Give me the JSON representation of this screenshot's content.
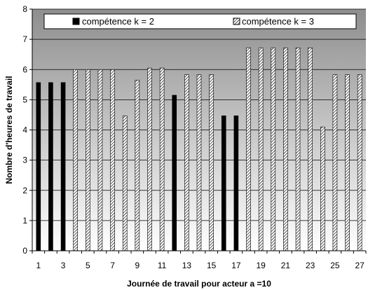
{
  "chart_data": {
    "type": "bar",
    "x": [
      1,
      2,
      3,
      4,
      5,
      6,
      7,
      8,
      9,
      10,
      11,
      12,
      13,
      14,
      15,
      16,
      17,
      18,
      19,
      20,
      21,
      22,
      23,
      24,
      25,
      26,
      27
    ],
    "x_tick_labels": [
      "1",
      "3",
      "5",
      "7",
      "9",
      "11",
      "13",
      "15",
      "17",
      "19",
      "21",
      "23",
      "25",
      "27"
    ],
    "ylim": [
      0,
      8
    ],
    "y_ticks": [
      0,
      1,
      2,
      3,
      4,
      5,
      6,
      7,
      8
    ],
    "xlabel": "Journée de travail pour acteur a =10",
    "ylabel": "Nombre d'heures de travail",
    "grid": true,
    "legend_position": "top",
    "series": [
      {
        "name": "compétence k = 2",
        "color": "#000000",
        "pattern": "solid",
        "values": [
          5.57,
          5.57,
          5.57,
          null,
          null,
          null,
          null,
          null,
          null,
          null,
          null,
          5.15,
          null,
          null,
          null,
          4.47,
          4.47,
          null,
          null,
          null,
          null,
          null,
          null,
          null,
          null,
          null,
          null
        ]
      },
      {
        "name": "compétence k = 3",
        "color": "#ffffff",
        "pattern": "diagonal-hatch",
        "values": [
          null,
          null,
          null,
          6.0,
          6.0,
          6.0,
          6.0,
          4.47,
          5.65,
          6.05,
          6.05,
          null,
          5.83,
          5.83,
          5.83,
          null,
          null,
          6.72,
          6.72,
          6.72,
          6.72,
          6.72,
          6.72,
          4.1,
          5.83,
          5.83,
          5.83
        ]
      }
    ]
  }
}
